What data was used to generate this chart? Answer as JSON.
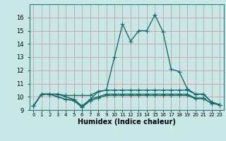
{
  "xlabel": "Humidex (Indice chaleur)",
  "bg_color": "#c8e8e8",
  "grid_color": "#b8d8d8",
  "line_color": "#1a6b6b",
  "x": [
    0,
    1,
    2,
    3,
    4,
    5,
    6,
    7,
    8,
    9,
    10,
    11,
    12,
    13,
    14,
    15,
    16,
    17,
    18,
    19,
    20,
    21,
    22,
    23
  ],
  "series": [
    [
      9.3,
      10.2,
      10.2,
      10.2,
      10.0,
      9.8,
      9.3,
      9.8,
      10.4,
      10.5,
      13.0,
      15.5,
      14.2,
      15.0,
      15.0,
      16.2,
      14.9,
      12.1,
      11.9,
      10.6,
      10.2,
      10.2,
      9.6,
      9.4
    ],
    [
      9.3,
      10.2,
      10.2,
      10.2,
      10.1,
      10.1,
      10.1,
      10.1,
      10.4,
      10.5,
      10.5,
      10.5,
      10.5,
      10.5,
      10.5,
      10.5,
      10.5,
      10.5,
      10.5,
      10.5,
      10.2,
      10.2,
      9.6,
      9.4
    ],
    [
      9.3,
      10.2,
      10.2,
      10.0,
      9.8,
      9.8,
      9.2,
      9.8,
      10.0,
      10.2,
      10.2,
      10.2,
      10.2,
      10.2,
      10.2,
      10.2,
      10.2,
      10.2,
      10.2,
      10.2,
      9.9,
      9.9,
      9.5,
      9.4
    ],
    [
      9.3,
      10.2,
      10.2,
      10.0,
      9.8,
      9.7,
      9.2,
      9.7,
      9.9,
      10.1,
      10.1,
      10.1,
      10.1,
      10.1,
      10.1,
      10.1,
      10.1,
      10.1,
      10.1,
      10.1,
      9.85,
      9.85,
      9.5,
      9.4
    ]
  ],
  "ylim": [
    9,
    17
  ],
  "xlim": [
    -0.5,
    23.5
  ],
  "yticks": [
    9,
    10,
    11,
    12,
    13,
    14,
    15,
    16
  ],
  "xticks": [
    0,
    1,
    2,
    3,
    4,
    5,
    6,
    7,
    8,
    9,
    10,
    11,
    12,
    13,
    14,
    15,
    16,
    17,
    18,
    19,
    20,
    21,
    22,
    23
  ],
  "xtick_labels": [
    "0",
    "1",
    "2",
    "3",
    "4",
    "5",
    "6",
    "7",
    "8",
    "9",
    "10",
    "11",
    "12",
    "13",
    "14",
    "15",
    "16",
    "17",
    "18",
    "19",
    "20",
    "21",
    "22",
    "23"
  ],
  "marker": "+",
  "markersize": 4,
  "linewidth": 1.0,
  "ytick_fontsize": 6,
  "xtick_fontsize": 5,
  "xlabel_fontsize": 7
}
